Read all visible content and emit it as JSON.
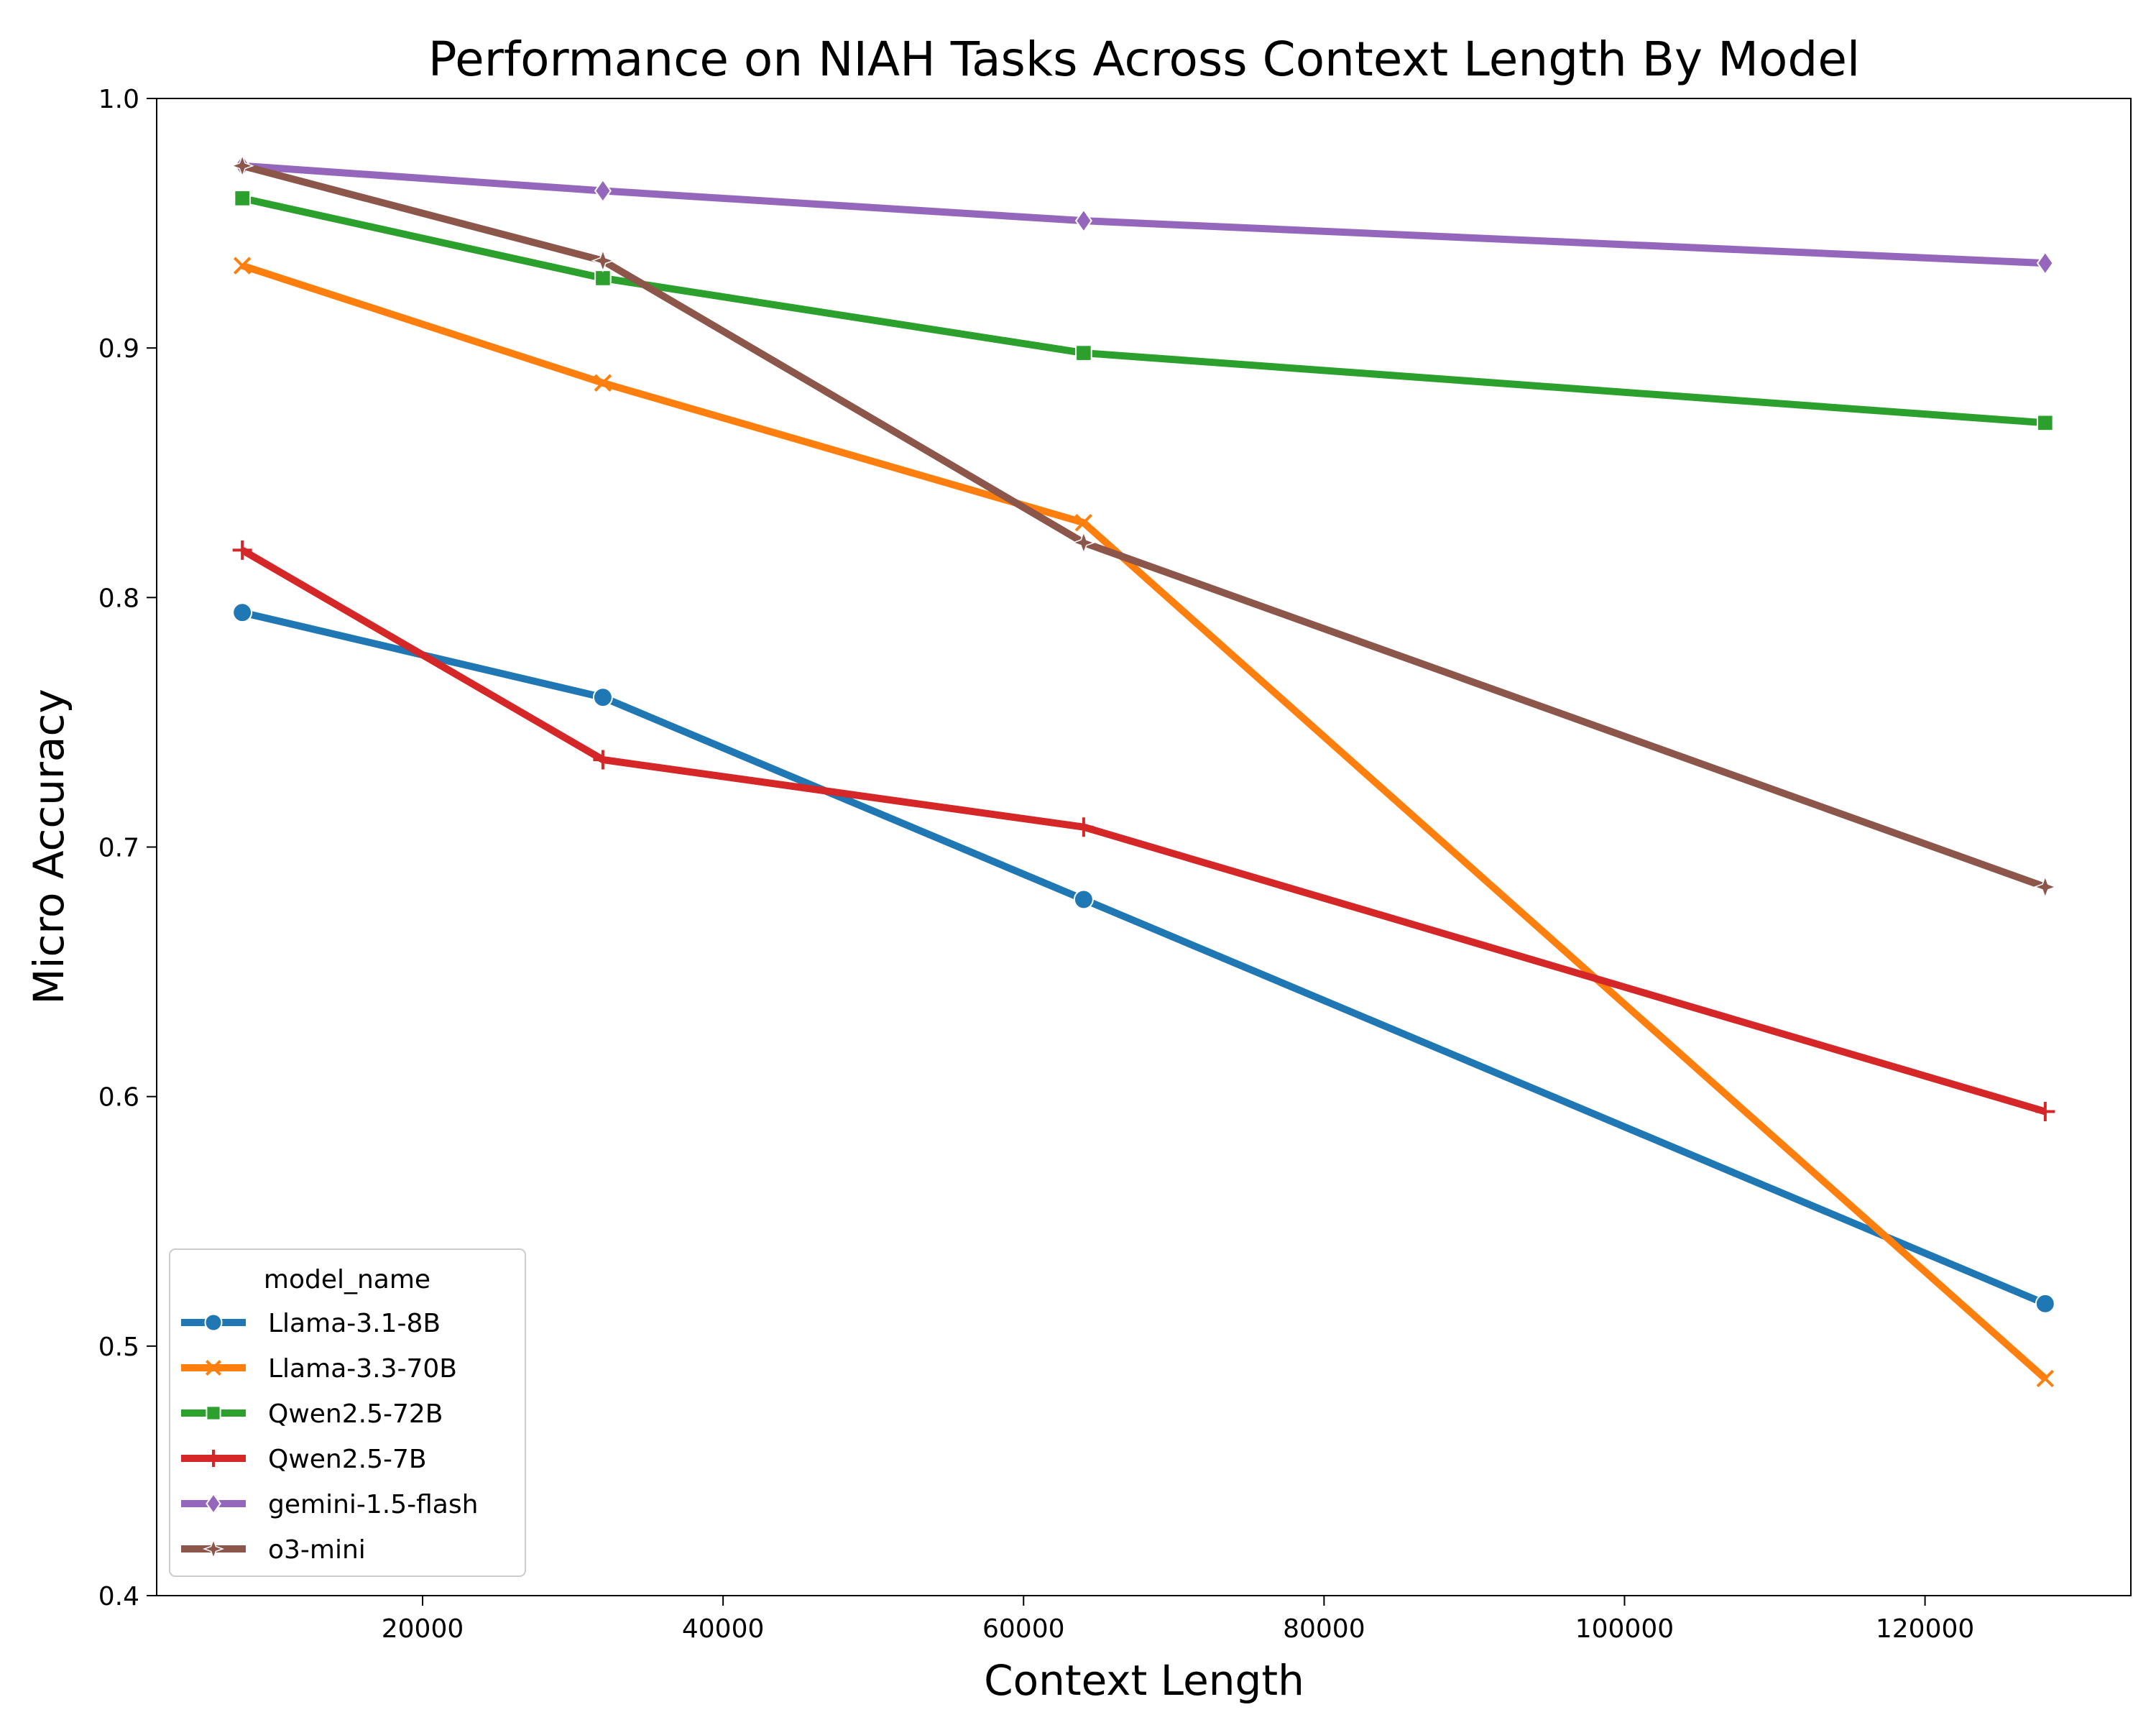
{
  "chart_data": {
    "type": "line",
    "title": "Performance on NIAH Tasks Across Context Length By Model",
    "xlabel": "Context Length",
    "ylabel": "Micro Accuracy",
    "xlim": [
      2300,
      133700
    ],
    "ylim": [
      0.4,
      1.0
    ],
    "x_ticks": [
      20000,
      40000,
      60000,
      80000,
      100000,
      120000
    ],
    "y_ticks": [
      0.4,
      0.5,
      0.6,
      0.7,
      0.8,
      0.9,
      1.0
    ],
    "x_tick_labels": [
      "20000",
      "40000",
      "60000",
      "80000",
      "100000",
      "120000"
    ],
    "y_tick_labels": [
      "0.4",
      "0.5",
      "0.6",
      "0.7",
      "0.8",
      "0.9",
      "1.0"
    ],
    "grid": false,
    "legend": {
      "title": "model_name",
      "placement": "lower-left"
    },
    "x": [
      8000,
      32000,
      64000,
      128000
    ],
    "series": [
      {
        "name": "Llama-3.1-8B",
        "color": "#1f77b4",
        "marker": "circle",
        "values": [
          0.794,
          0.76,
          0.679,
          0.517
        ]
      },
      {
        "name": "Llama-3.3-70B",
        "color": "#ff7f0e",
        "marker": "x",
        "values": [
          0.933,
          0.886,
          0.83,
          0.487
        ]
      },
      {
        "name": "Qwen2.5-72B",
        "color": "#2ca02c",
        "marker": "square",
        "values": [
          0.96,
          0.928,
          0.898,
          0.87
        ]
      },
      {
        "name": "Qwen2.5-7B",
        "color": "#d62728",
        "marker": "plus",
        "values": [
          0.819,
          0.735,
          0.708,
          0.594
        ]
      },
      {
        "name": "gemini-1.5-flash",
        "color": "#9467bd",
        "marker": "diamond",
        "values": [
          0.973,
          0.963,
          0.951,
          0.934
        ]
      },
      {
        "name": "o3-mini",
        "color": "#8c564b",
        "marker": "star",
        "values": [
          0.973,
          0.935,
          0.822,
          0.684
        ]
      }
    ]
  }
}
